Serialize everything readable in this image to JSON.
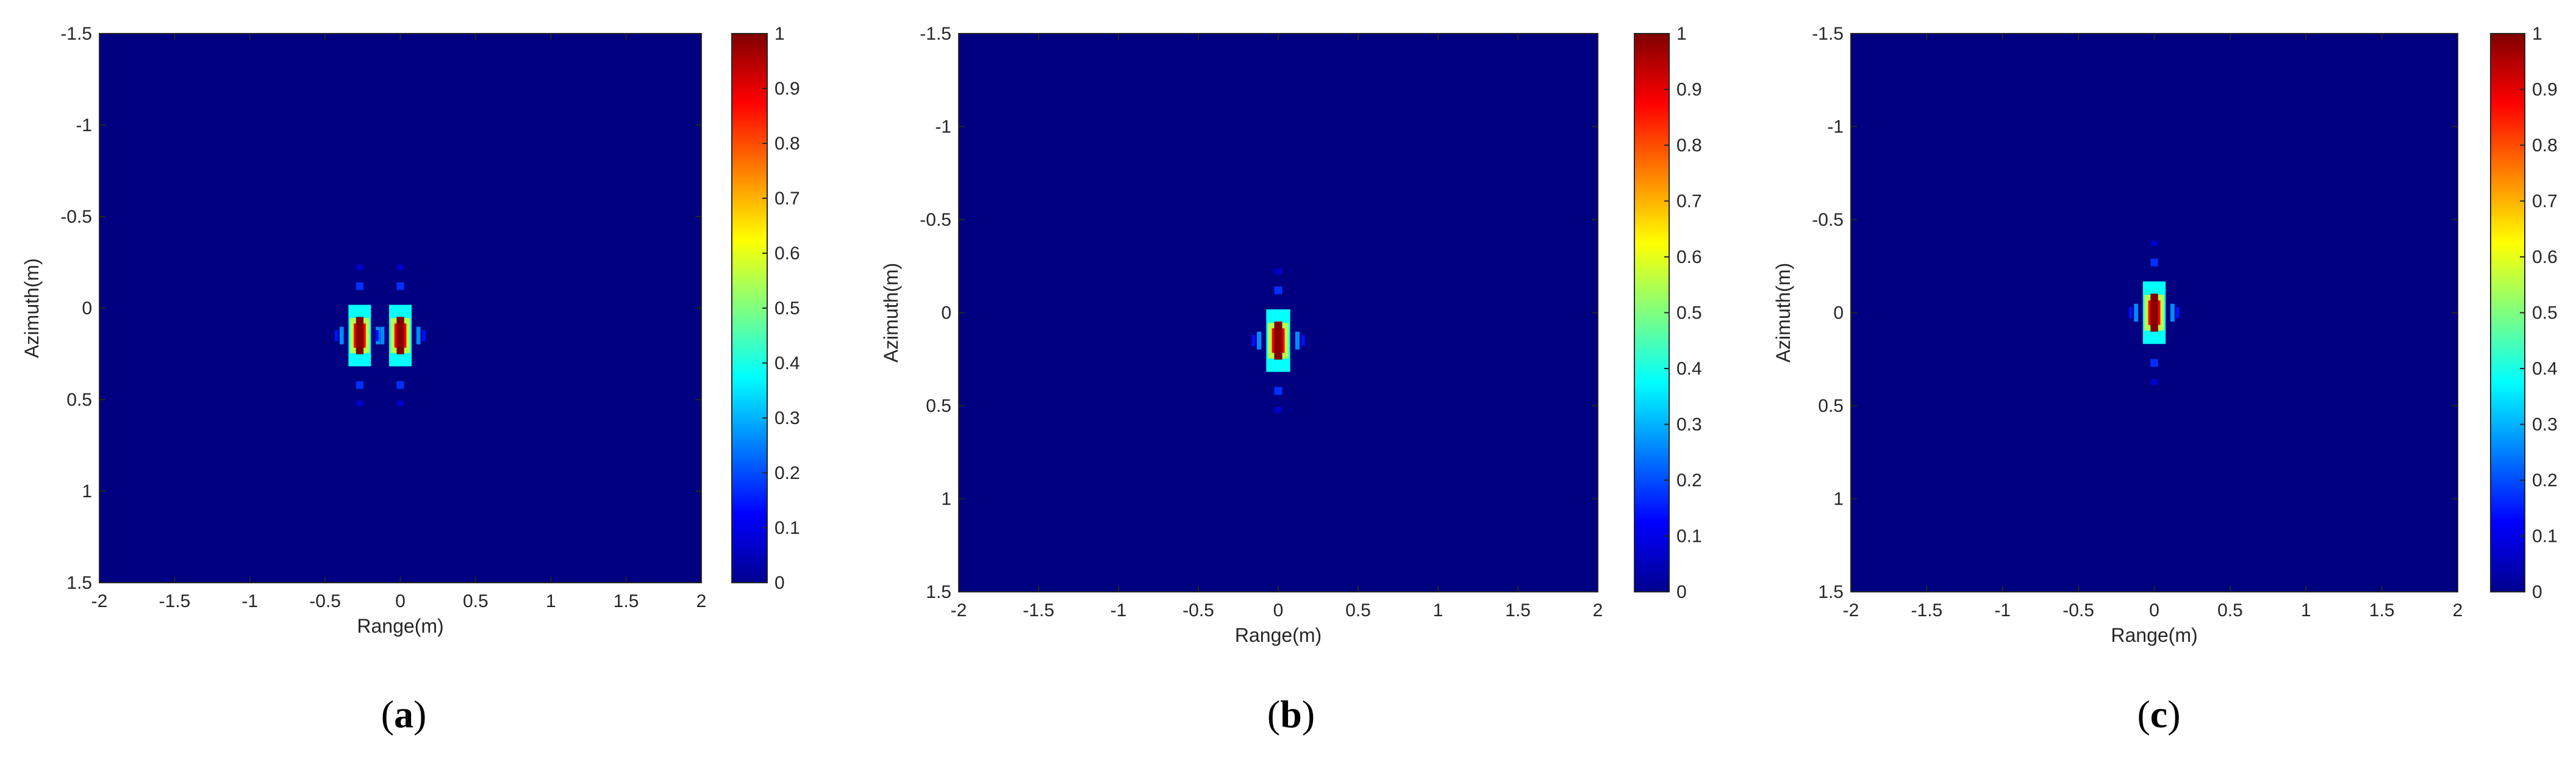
{
  "chart_data": [
    {
      "type": "heatmap",
      "caption_letter": "a",
      "xlabel": "Range(m)",
      "ylabel": "Azimuth(m)",
      "xlim": [
        -2,
        2
      ],
      "ylim": [
        -1.5,
        1.5
      ],
      "y_reversed": true,
      "xticks": [
        "-2",
        "-1.5",
        "-1",
        "-0.5",
        "0",
        "0.5",
        "1",
        "1.5",
        "2"
      ],
      "yticks": [
        "-1.5",
        "-1",
        "-0.5",
        "0",
        "0.5",
        "1",
        "1.5"
      ],
      "colorbar": {
        "min": 0,
        "max": 1,
        "ticks": [
          "0",
          "0.1",
          "0.2",
          "0.3",
          "0.4",
          "0.5",
          "0.6",
          "0.7",
          "0.8",
          "0.9",
          "1"
        ]
      },
      "background_value": 0,
      "targets": [
        {
          "x": -0.27,
          "y": 0.15,
          "peak": 1
        },
        {
          "x": 0.0,
          "y": 0.15,
          "peak": 1
        }
      ]
    },
    {
      "type": "heatmap",
      "caption_letter": "b",
      "xlabel": "Range(m)",
      "ylabel": "Azimuth(m)",
      "xlim": [
        -2,
        2
      ],
      "ylim": [
        -1.5,
        1.5
      ],
      "y_reversed": true,
      "xticks": [
        "-2",
        "-1.5",
        "-1",
        "-0.5",
        "0",
        "0.5",
        "1",
        "1.5",
        "2"
      ],
      "yticks": [
        "-1.5",
        "-1",
        "-0.5",
        "0",
        "0.5",
        "1",
        "1.5"
      ],
      "colorbar": {
        "min": 0,
        "max": 1,
        "ticks": [
          "0",
          "0.1",
          "0.2",
          "0.3",
          "0.4",
          "0.5",
          "0.6",
          "0.7",
          "0.8",
          "0.9",
          "1"
        ]
      },
      "background_value": 0,
      "targets": [
        {
          "x": 0.0,
          "y": 0.15,
          "peak": 1
        }
      ]
    },
    {
      "type": "heatmap",
      "caption_letter": "c",
      "xlabel": "Range(m)",
      "ylabel": "Azimuth(m)",
      "xlim": [
        -2,
        2
      ],
      "ylim": [
        -1.5,
        1.5
      ],
      "y_reversed": true,
      "xticks": [
        "-2",
        "-1.5",
        "-1",
        "-0.5",
        "0",
        "0.5",
        "1",
        "1.5",
        "2"
      ],
      "yticks": [
        "-1.5",
        "-1",
        "-0.5",
        "0",
        "0.5",
        "1",
        "1.5"
      ],
      "colorbar": {
        "min": 0,
        "max": 1,
        "ticks": [
          "0",
          "0.1",
          "0.2",
          "0.3",
          "0.4",
          "0.5",
          "0.6",
          "0.7",
          "0.8",
          "0.9",
          "1"
        ]
      },
      "background_value": 0,
      "targets": [
        {
          "x": 0.0,
          "y": 0.0,
          "peak": 1
        }
      ]
    }
  ]
}
